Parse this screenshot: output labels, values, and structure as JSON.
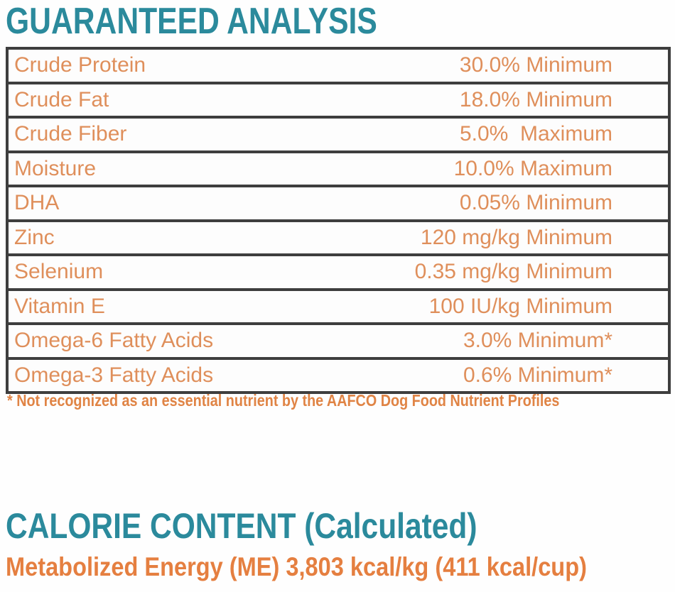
{
  "guaranteed_analysis": {
    "title": "GUARANTEED ANALYSIS",
    "table": {
      "rows": [
        {
          "label": "Crude Protein",
          "value": "30.0% Minimum"
        },
        {
          "label": "Crude Fat",
          "value": "18.0% Minimum"
        },
        {
          "label": "Crude Fiber",
          "value": "5.0%  Maximum"
        },
        {
          "label": "Moisture",
          "value": "10.0% Maximum"
        },
        {
          "label": "DHA",
          "value": "0.05% Minimum"
        },
        {
          "label": "Zinc",
          "value": "120 mg/kg Minimum"
        },
        {
          "label": "Selenium",
          "value": "0.35 mg/kg Minimum"
        },
        {
          "label": "Vitamin E",
          "value": "100 IU/kg Minimum"
        },
        {
          "label": "Omega-6 Fatty Acids",
          "value": "3.0% Minimum*"
        },
        {
          "label": "Omega-3 Fatty Acids",
          "value": "0.6% Minimum*"
        }
      ]
    },
    "footnote": "* Not recognized as an essential nutrient by the AAFCO Dog Food Nutrient Profiles"
  },
  "calorie_content": {
    "title": "CALORIE CONTENT (Calculated)",
    "detail": "Metabolized Energy (ME) 3,803 kcal/kg (411 kcal/cup)"
  },
  "colors": {
    "heading_teal": "#2b8a9c",
    "table_text_orange": "#df8f5b",
    "footnote_orange": "#e08445",
    "calorie_detail_orange": "#e57f40",
    "table_border": "#3e3e3e",
    "background": "#fefefe"
  }
}
